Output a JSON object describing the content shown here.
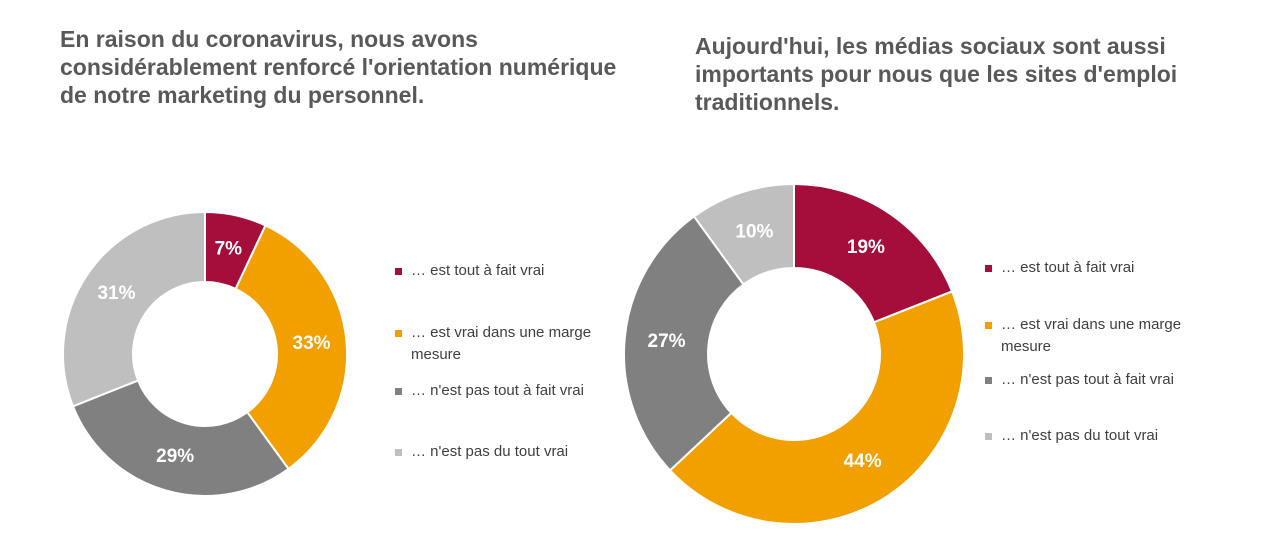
{
  "chart_data": [
    {
      "type": "pie",
      "title": "En raison du coronavirus, nous avons considérablement renforcé l'orientation numérique de notre marketing du personnel.",
      "categories": [
        "… est tout à fait vrai",
        "… est vrai dans une marge mesure",
        "… n'est pas tout à fait vrai",
        "… n'est pas du tout vrai"
      ],
      "values": [
        7,
        33,
        29,
        31
      ],
      "value_labels": [
        "7%",
        "33%",
        "29%",
        "31%"
      ],
      "colors": [
        "#a50e3b",
        "#f29f00",
        "#808080",
        "#bfbfbf"
      ]
    },
    {
      "type": "pie",
      "title": "Aujourd'hui, les médias sociaux sont aussi importants pour nous que les sites d'emploi traditionnels.",
      "categories": [
        "… est tout à fait vrai",
        "… est vrai dans une marge mesure",
        "… n'est pas tout à fait vrai",
        "… n'est pas du tout vrai"
      ],
      "values": [
        19,
        44,
        27,
        10
      ],
      "value_labels": [
        "19%",
        "44%",
        "27%",
        "10%"
      ],
      "colors": [
        "#a50e3b",
        "#f29f00",
        "#808080",
        "#bfbfbf"
      ]
    }
  ]
}
